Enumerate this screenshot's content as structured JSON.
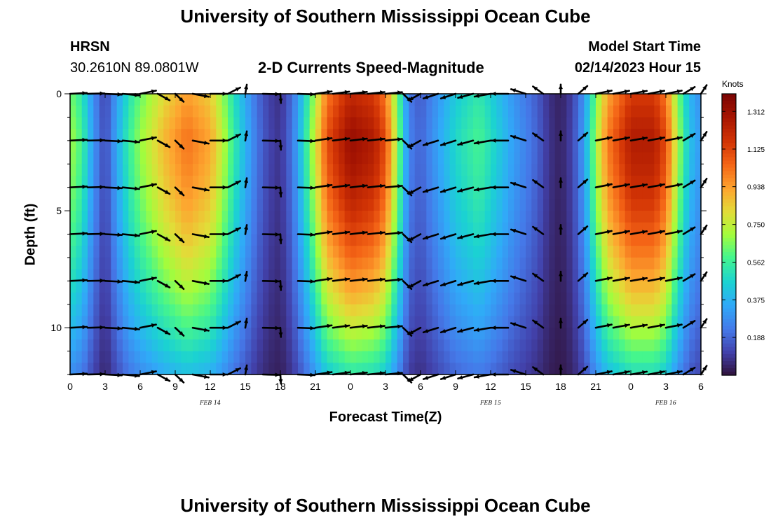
{
  "header": {
    "title": "University of Southern Mississippi Ocean Cube",
    "station_code": "HRSN",
    "coordinates": "30.2610N  89.0801W",
    "subtitle": "2-D Currents Speed-Magnitude",
    "model_start_label": "Model Start Time",
    "model_start_value": "02/14/2023 Hour 15"
  },
  "footer": {
    "title": "University of Southern Mississippi Ocean Cube"
  },
  "chart_data": {
    "type": "heatmap",
    "title": "2-D Currents Speed-Magnitude",
    "xlabel": "Forecast Time(Z)",
    "ylabel": "Depth (ft)",
    "x_range_hours": [
      0,
      54
    ],
    "y_range_ft": [
      0,
      12
    ],
    "y_inverted": true,
    "x_ticks": [
      {
        "hour": 0,
        "label": "0"
      },
      {
        "hour": 3,
        "label": "3"
      },
      {
        "hour": 6,
        "label": "6"
      },
      {
        "hour": 9,
        "label": "9"
      },
      {
        "hour": 12,
        "label": "12"
      },
      {
        "hour": 15,
        "label": "15"
      },
      {
        "hour": 18,
        "label": "18"
      },
      {
        "hour": 21,
        "label": "21"
      },
      {
        "hour": 24,
        "label": "0"
      },
      {
        "hour": 27,
        "label": "3"
      },
      {
        "hour": 30,
        "label": "6"
      },
      {
        "hour": 33,
        "label": "9"
      },
      {
        "hour": 36,
        "label": "12"
      },
      {
        "hour": 39,
        "label": "15"
      },
      {
        "hour": 42,
        "label": "18"
      },
      {
        "hour": 45,
        "label": "21"
      },
      {
        "hour": 48,
        "label": "0"
      },
      {
        "hour": 51,
        "label": "3"
      },
      {
        "hour": 54,
        "label": "6"
      }
    ],
    "y_ticks": [
      {
        "depth": 0,
        "label": "0"
      },
      {
        "depth": 5,
        "label": "5"
      },
      {
        "depth": 10,
        "label": "10"
      }
    ],
    "day_labels": [
      {
        "hour": 12,
        "label": "FEB 14"
      },
      {
        "hour": 36,
        "label": "FEB 15"
      },
      {
        "hour": 51,
        "label": "FEB 16"
      }
    ],
    "colorbar": {
      "units": "Knots",
      "min": 0.0,
      "max": 1.4,
      "ticks": [
        "0.188",
        "0.375",
        "0.562",
        "0.750",
        "0.938",
        "1.125",
        "1.312"
      ],
      "tick_values": [
        0.188,
        0.375,
        0.562,
        0.75,
        0.938,
        1.125,
        1.312
      ]
    },
    "speed_time_profile_knots": [
      [
        0,
        0.7
      ],
      [
        1,
        0.58
      ],
      [
        2,
        0.3
      ],
      [
        3,
        0.12
      ],
      [
        4,
        0.35
      ],
      [
        5,
        0.55
      ],
      [
        6,
        0.68
      ],
      [
        8,
        0.88
      ],
      [
        10,
        1.02
      ],
      [
        12,
        0.92
      ],
      [
        13,
        0.75
      ],
      [
        14,
        0.55
      ],
      [
        15,
        0.38
      ],
      [
        16,
        0.22
      ],
      [
        17,
        0.12
      ],
      [
        18,
        0.08
      ],
      [
        19,
        0.22
      ],
      [
        20,
        0.48
      ],
      [
        21,
        0.78
      ],
      [
        22,
        1.1
      ],
      [
        24,
        1.32
      ],
      [
        26,
        1.25
      ],
      [
        27,
        1.1
      ],
      [
        28,
        0.7
      ],
      [
        29,
        0.25
      ],
      [
        30,
        0.18
      ],
      [
        31,
        0.28
      ],
      [
        33,
        0.48
      ],
      [
        35,
        0.58
      ],
      [
        36,
        0.5
      ],
      [
        38,
        0.32
      ],
      [
        40,
        0.18
      ],
      [
        41,
        0.08
      ],
      [
        42,
        0.04
      ],
      [
        43,
        0.12
      ],
      [
        44,
        0.32
      ],
      [
        45,
        0.7
      ],
      [
        46,
        1.0
      ],
      [
        48,
        1.25
      ],
      [
        50,
        1.25
      ],
      [
        51,
        1.1
      ],
      [
        52,
        0.72
      ],
      [
        53,
        0.42
      ],
      [
        54,
        0.3
      ]
    ],
    "vector_depths_ft": [
      0,
      2,
      4,
      6,
      8,
      10,
      12
    ],
    "vector_direction_deg_by_hour": [
      [
        0,
        85
      ],
      [
        1,
        85
      ],
      [
        3,
        95
      ],
      [
        4,
        110
      ],
      [
        6,
        70
      ],
      [
        7,
        130
      ],
      [
        9,
        150
      ],
      [
        11,
        95
      ],
      [
        12,
        90
      ],
      [
        13,
        65
      ],
      [
        14,
        30
      ],
      [
        15,
        5
      ],
      [
        16,
        15
      ],
      [
        17,
        170
      ],
      [
        18,
        178
      ],
      [
        19,
        100
      ],
      [
        21,
        75
      ],
      [
        24,
        78
      ],
      [
        27,
        80
      ],
      [
        28,
        100
      ],
      [
        29,
        200
      ],
      [
        30,
        225
      ],
      [
        31,
        240
      ],
      [
        33,
        240
      ],
      [
        35,
        245
      ],
      [
        37,
        260
      ],
      [
        39,
        300
      ],
      [
        41,
        330
      ],
      [
        42,
        0
      ],
      [
        43,
        20
      ],
      [
        45,
        70
      ],
      [
        48,
        72
      ],
      [
        51,
        70
      ],
      [
        52,
        50
      ],
      [
        53,
        35
      ],
      [
        54,
        20
      ]
    ]
  }
}
